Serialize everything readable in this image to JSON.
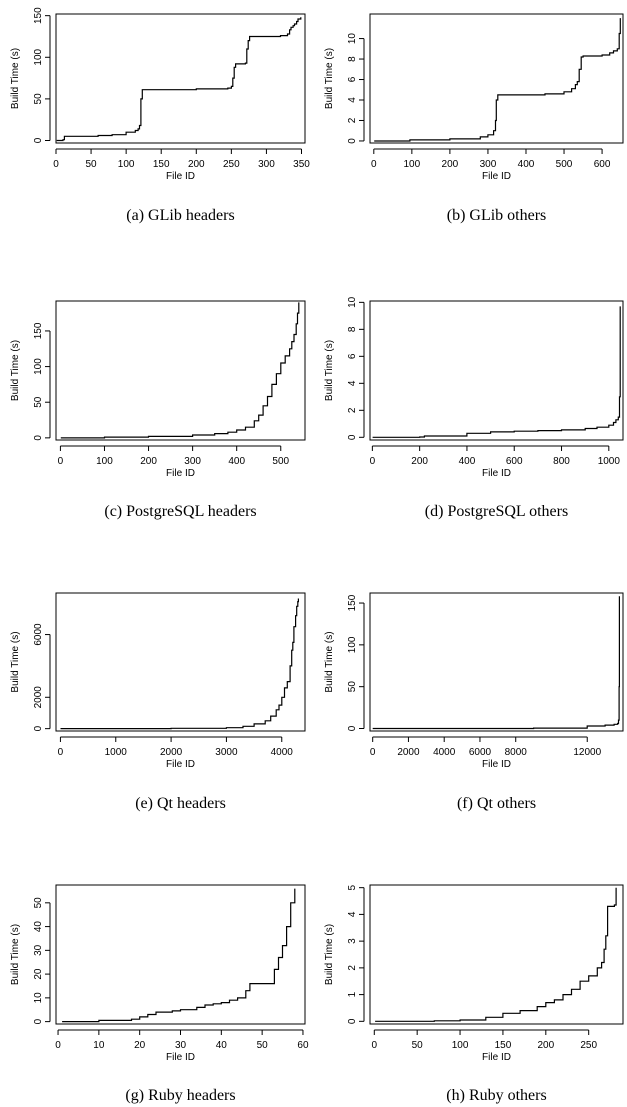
{
  "chart_data": [
    {
      "id": "a",
      "type": "line",
      "caption": "(a) GLib headers",
      "title": "",
      "xlabel": "File ID",
      "ylabel": "Build Time (s)",
      "xlim": [
        0,
        355
      ],
      "ylim": [
        -3,
        152
      ],
      "xticks": [
        0,
        50,
        100,
        150,
        200,
        250,
        300,
        350
      ],
      "yticks": [
        0,
        50,
        100,
        150
      ],
      "grid": false,
      "legend": "none",
      "series": [
        {
          "x": [
            1,
            10,
            12,
            60,
            80,
            100,
            113,
            117,
            119,
            121,
            123,
            200,
            245,
            250,
            252,
            254,
            256,
            270,
            272,
            274,
            276,
            300,
            320,
            330,
            333,
            335,
            338,
            340,
            343,
            345,
            349
          ],
          "y": [
            0,
            1,
            5,
            6,
            7,
            10,
            12,
            14,
            18,
            50,
            61,
            62,
            63,
            65,
            75,
            88,
            92,
            93,
            110,
            120,
            125,
            125,
            126,
            128,
            133,
            136,
            138,
            140,
            143,
            146,
            148
          ]
        }
      ]
    },
    {
      "id": "b",
      "type": "line",
      "caption": "(b) GLib others",
      "title": "",
      "xlabel": "File ID",
      "ylabel": "Build Time (s)",
      "xlim": [
        -10,
        655
      ],
      "ylim": [
        -0.2,
        12.4
      ],
      "xticks": [
        0,
        100,
        200,
        300,
        400,
        500,
        600
      ],
      "yticks": [
        0,
        2,
        4,
        6,
        8,
        10
      ],
      "grid": false,
      "legend": "none",
      "series": [
        {
          "x": [
            1,
            90,
            95,
            200,
            280,
            300,
            315,
            320,
            322,
            326,
            330,
            450,
            500,
            520,
            530,
            535,
            540,
            545,
            550,
            600,
            620,
            630,
            640,
            645,
            648
          ],
          "y": [
            0,
            0,
            0.1,
            0.2,
            0.4,
            0.6,
            1.0,
            2.0,
            4.0,
            4.5,
            4.5,
            4.6,
            4.8,
            5.1,
            5.5,
            5.8,
            7.0,
            8.2,
            8.3,
            8.4,
            8.6,
            8.8,
            9.0,
            10.5,
            12.0
          ]
        }
      ]
    },
    {
      "id": "c",
      "type": "line",
      "caption": "(c) PostgreSQL headers",
      "title": "",
      "xlabel": "File ID",
      "ylabel": "Build Time (s)",
      "xlim": [
        -10,
        555
      ],
      "ylim": [
        -3,
        192
      ],
      "xticks": [
        0,
        100,
        200,
        300,
        400,
        500
      ],
      "yticks": [
        0,
        50,
        100,
        150
      ],
      "grid": false,
      "legend": "none",
      "series": [
        {
          "x": [
            1,
            100,
            200,
            300,
            350,
            380,
            400,
            420,
            440,
            450,
            460,
            470,
            480,
            490,
            500,
            510,
            520,
            525,
            530,
            535,
            538,
            541
          ],
          "y": [
            0,
            1,
            2,
            4,
            6,
            8,
            11,
            15,
            24,
            32,
            45,
            58,
            75,
            90,
            105,
            115,
            125,
            135,
            145,
            160,
            175,
            190
          ]
        }
      ]
    },
    {
      "id": "d",
      "type": "line",
      "caption": "(d) PostgreSQL others",
      "title": "",
      "xlabel": "File ID",
      "ylabel": "Build Time (s)",
      "xlim": [
        -10,
        1060
      ],
      "ylim": [
        -0.2,
        10.1
      ],
      "xticks": [
        0,
        200,
        400,
        600,
        800,
        1000
      ],
      "yticks": [
        0,
        2,
        4,
        6,
        8,
        10
      ],
      "grid": false,
      "legend": "none",
      "series": [
        {
          "x": [
            1,
            200,
            220,
            400,
            500,
            600,
            700,
            800,
            900,
            950,
            1000,
            1020,
            1030,
            1040,
            1045,
            1048
          ],
          "y": [
            0,
            0.02,
            0.1,
            0.3,
            0.4,
            0.45,
            0.5,
            0.55,
            0.65,
            0.75,
            0.9,
            1.1,
            1.3,
            1.5,
            3.0,
            9.7
          ]
        }
      ]
    },
    {
      "id": "e",
      "type": "line",
      "caption": "(e) Qt headers",
      "title": "",
      "xlabel": "File ID",
      "ylabel": "Build Time (s)",
      "xlim": [
        -80,
        4420
      ],
      "ylim": [
        -150,
        8650
      ],
      "xticks": [
        0,
        1000,
        2000,
        3000,
        4000
      ],
      "yticks": [
        0,
        2000,
        6000
      ],
      "grid": false,
      "legend": "none",
      "series": [
        {
          "x": [
            1,
            2000,
            3000,
            3300,
            3500,
            3700,
            3800,
            3900,
            3950,
            4000,
            4050,
            4100,
            4150,
            4180,
            4200,
            4220,
            4250,
            4270,
            4290,
            4300
          ],
          "y": [
            0,
            20,
            60,
            150,
            300,
            500,
            800,
            1200,
            1500,
            2000,
            2600,
            3000,
            4000,
            5000,
            5500,
            6500,
            7200,
            7800,
            8100,
            8300
          ]
        }
      ]
    },
    {
      "id": "f",
      "type": "line",
      "caption": "(f) Qt others",
      "title": "",
      "xlabel": "File ID",
      "ylabel": "Build Time (s)",
      "xlim": [
        -150,
        14000
      ],
      "ylim": [
        -3,
        162
      ],
      "xticks": [
        0,
        2000,
        4000,
        6000,
        8000,
        12000
      ],
      "yticks": [
        0,
        50,
        100,
        150
      ],
      "grid": false,
      "legend": "none",
      "series": [
        {
          "x": [
            1,
            9000,
            12000,
            13000,
            13500,
            13700,
            13750,
            13780,
            13800
          ],
          "y": [
            0,
            0.5,
            3,
            4,
            5,
            6,
            10,
            50,
            158
          ]
        }
      ]
    },
    {
      "id": "g",
      "type": "line",
      "caption": "(g) Ruby headers",
      "title": "",
      "xlabel": "File ID",
      "ylabel": "Build Time (s)",
      "xlim": [
        -0.5,
        60.5
      ],
      "ylim": [
        -1,
        57.5
      ],
      "xticks": [
        0,
        10,
        20,
        30,
        40,
        50,
        60
      ],
      "yticks": [
        0,
        10,
        20,
        30,
        40,
        50
      ],
      "grid": false,
      "legend": "none",
      "series": [
        {
          "x": [
            1,
            10,
            18,
            20,
            22,
            24,
            26,
            28,
            30,
            32,
            34,
            36,
            38,
            40,
            42,
            44,
            46,
            47,
            48,
            50,
            52,
            53,
            54,
            55,
            56,
            57,
            58
          ],
          "y": [
            0,
            0.5,
            1,
            2,
            3,
            4,
            4,
            4.5,
            5,
            5,
            6,
            7,
            7.5,
            8,
            9,
            10,
            13,
            16,
            16,
            16,
            16,
            22,
            27,
            32,
            40,
            50,
            56
          ]
        }
      ]
    },
    {
      "id": "h",
      "type": "line",
      "caption": "(h) Ruby others",
      "title": "",
      "xlabel": "File ID",
      "ylabel": "Build Time (s)",
      "xlim": [
        -5,
        290
      ],
      "ylim": [
        -0.1,
        5.1
      ],
      "xticks": [
        0,
        50,
        100,
        150,
        200,
        250
      ],
      "yticks": [
        0,
        1,
        2,
        3,
        4,
        5
      ],
      "grid": false,
      "legend": "none",
      "series": [
        {
          "x": [
            1,
            70,
            100,
            130,
            150,
            170,
            190,
            200,
            210,
            220,
            230,
            240,
            250,
            260,
            265,
            268,
            270,
            272,
            275,
            280,
            282
          ],
          "y": [
            0,
            0.02,
            0.05,
            0.15,
            0.3,
            0.4,
            0.55,
            0.7,
            0.8,
            1.0,
            1.2,
            1.5,
            1.7,
            2.0,
            2.2,
            2.7,
            3.2,
            4.3,
            4.3,
            4.35,
            5.0
          ]
        }
      ]
    }
  ]
}
